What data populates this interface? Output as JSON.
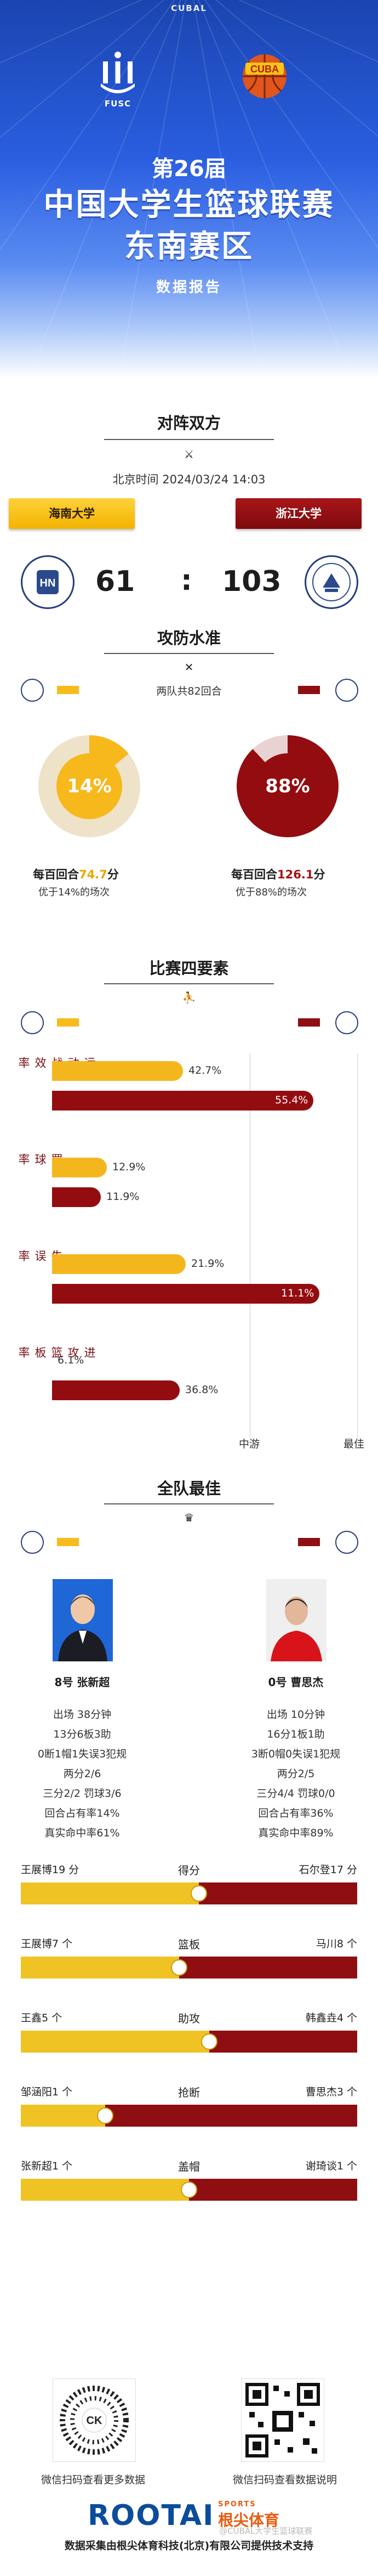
{
  "header": {
    "brand": "CUBAL",
    "left_logo_text": "FUSC",
    "right_logo_text": "CUBA",
    "edition": "第26届",
    "title": "中国大学生篮球联赛",
    "region": "东南赛区",
    "report": "数据报告"
  },
  "match": {
    "section_title": "对阵双方",
    "time": "北京时间  2024/03/24 14:03",
    "home_team": "海南大学",
    "away_team": "浙江大学",
    "home_score": "61",
    "separator": ":",
    "away_score": "103"
  },
  "offense_defense": {
    "section_title": "攻防水准",
    "rounds": "两队共82回合",
    "home_pct": "14%",
    "away_pct": "88%",
    "home_pct_value": 14,
    "away_pct_value": 88,
    "home_ppp_prefix": "每百回合",
    "home_ppp_value": "74.7",
    "home_ppp_suffix": "分",
    "home_note": "优于14%的场次",
    "away_ppp_prefix": "每百回合",
    "away_ppp_value": "126.1",
    "away_ppp_suffix": "分",
    "away_note": "优于88%的场次"
  },
  "four_factors": {
    "section_title": "比赛四要素",
    "axis_mid": "中游",
    "axis_top": "最佳",
    "rows": [
      {
        "label": "运动战效率",
        "home": "42.7%",
        "away": "55.4%",
        "home_v": 0.43,
        "away_v": 0.86
      },
      {
        "label": "罚球率",
        "home": "12.9%",
        "away": "11.9%",
        "home_v": 0.18,
        "away_v": 0.16
      },
      {
        "label": "失误率",
        "home": "21.9%",
        "away": "11.1%",
        "home_v": 0.44,
        "away_v": 0.88
      },
      {
        "label": "进攻篮板率",
        "home": "6.1%",
        "away": "36.8%",
        "home_v": 0.0,
        "away_v": 0.42
      }
    ]
  },
  "best_players": {
    "section_title": "全队最佳",
    "home": {
      "name": "8号 张新超",
      "lines": [
        "出场 38分钟",
        "13分6板3助",
        "0断1帽1失误3犯规",
        "两分2/6",
        "三分2/2 罚球3/6",
        "回合占有率14%",
        "真实命中率61%"
      ]
    },
    "away": {
      "name": "0号 曹思杰",
      "lines": [
        "出场 10分钟",
        "16分1板1助",
        "3断0帽0失误1犯规",
        "两分2/5",
        "三分4/4 罚球0/0",
        "回合占有率36%",
        "真实命中率89%"
      ]
    }
  },
  "leaders": [
    {
      "stat": "得分",
      "home": "王展博19 分",
      "away": "石尔登17 分",
      "ratio": 0.53
    },
    {
      "stat": "篮板",
      "home": "王展博7 个",
      "away": "马川8 个",
      "ratio": 0.47
    },
    {
      "stat": "助攻",
      "home": "王鑫5 个",
      "away": "韩鑫垚4 个",
      "ratio": 0.56
    },
    {
      "stat": "抢断",
      "home": "邹涵阳1 个",
      "away": "曹思杰3 个",
      "ratio": 0.25
    },
    {
      "stat": "盖帽",
      "home": "张新超1 个",
      "away": "谢琦谈1 个",
      "ratio": 0.5
    }
  ],
  "footer": {
    "qr_left_caption": "微信扫码查看更多数据",
    "qr_right_caption": "微信扫码查看数据说明",
    "logo": "ROOTAI",
    "logo_tag": "SPORTS",
    "logo_cn": "根尖体育",
    "credit": "数据采集由根尖体育科技(北京)有限公司提供技术支持",
    "watermark": "@CUBAL大学生篮球联赛"
  },
  "colors": {
    "home": "#f3b71d",
    "away": "#930c10",
    "hero_blue": "#2a5ee0"
  }
}
